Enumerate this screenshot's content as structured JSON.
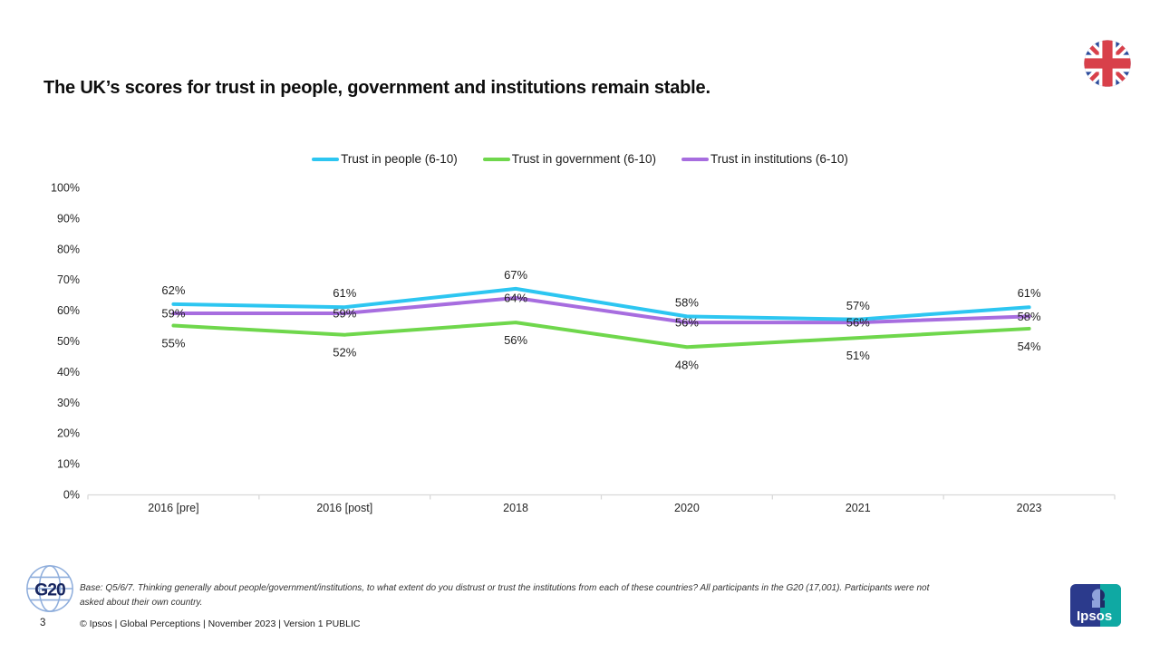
{
  "slide": {
    "title": "The UK’s scores for trust in people, government and institutions remain stable."
  },
  "footer": {
    "base_note": "Base: Q5/6/7. Thinking generally about people/government/institutions, to what extent do you distrust or trust the institutions from each of these countries? All participants in the G20 (17,001). Participants were not asked about their own country.",
    "page_number": "3",
    "copyright": "© Ipsos | Global Perceptions | November 2023 | Version 1  PUBLIC"
  },
  "logos": {
    "g20_text": "G20",
    "ipsos_text": "Ipsos"
  },
  "chart_data": {
    "type": "line",
    "title": "",
    "categories": [
      "2016 [pre]",
      "2016 [post]",
      "2018",
      "2020",
      "2021",
      "2023"
    ],
    "series": [
      {
        "name": "Trust in people (6-10)",
        "color": "#2DC6F1",
        "values": [
          62,
          61,
          67,
          58,
          57,
          61
        ],
        "label_position": "above"
      },
      {
        "name": "Trust in government (6-10)",
        "color": "#6FD74C",
        "values": [
          55,
          52,
          56,
          48,
          51,
          54
        ],
        "label_position": "below"
      },
      {
        "name": "Trust in institutions (6-10)",
        "color": "#A76DDF",
        "values": [
          59,
          59,
          64,
          56,
          56,
          58
        ],
        "label_position": "center"
      }
    ],
    "ylim": [
      0,
      100
    ],
    "ytick_step": 10,
    "ytick_suffix": "%",
    "grid": false,
    "legend_position": "top",
    "axis_line_color": "#D9D9D9"
  }
}
